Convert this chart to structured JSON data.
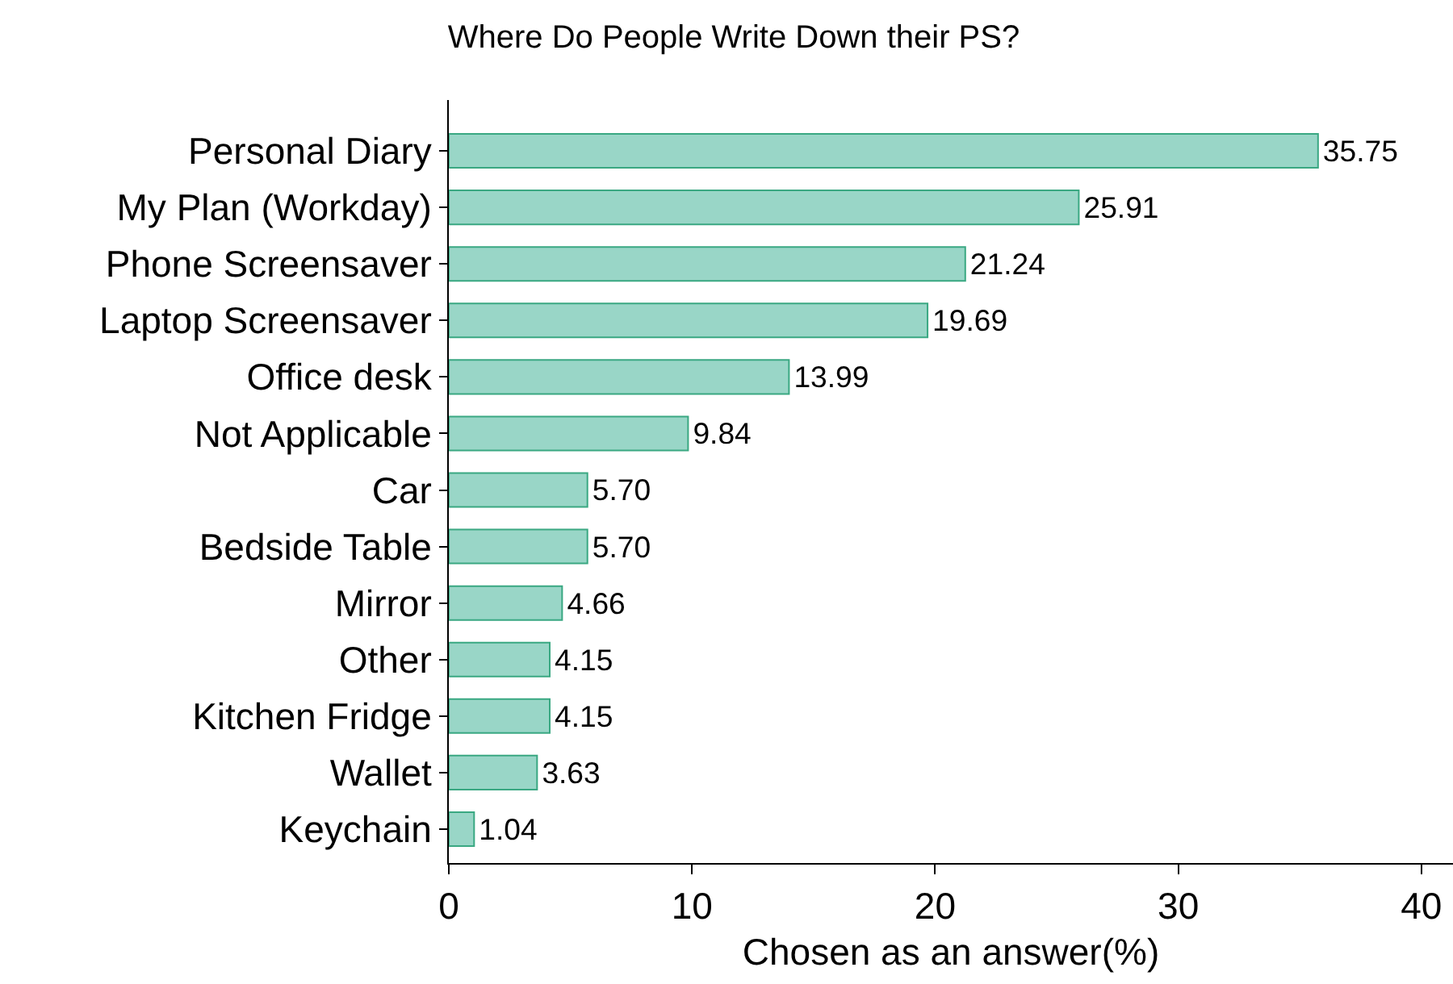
{
  "chart_data": {
    "type": "bar",
    "orientation": "horizontal",
    "title": "Where Do People Write Down their PS?",
    "xlabel": "Chosen as an answer(%)",
    "categories": [
      "Personal Diary",
      "My Plan (Workday)",
      "Phone Screensaver",
      "Laptop Screensaver",
      "Office desk",
      "Not Applicable",
      "Car",
      "Bedside Table",
      "Mirror",
      "Other",
      "Kitchen Fridge",
      "Wallet",
      "Keychain"
    ],
    "values": [
      35.75,
      25.91,
      21.24,
      19.69,
      13.99,
      9.84,
      5.7,
      5.7,
      4.66,
      4.15,
      4.15,
      3.63,
      1.04
    ],
    "value_labels": [
      "35.75",
      "25.91",
      "21.24",
      "19.69",
      "13.99",
      "9.84",
      "5.70",
      "5.70",
      "4.66",
      "4.15",
      "4.15",
      "3.63",
      "1.04"
    ],
    "color": "#99d6c7",
    "xlim": [
      0,
      41.3
    ],
    "xticks": [
      0,
      10,
      20,
      30,
      40
    ],
    "legend": false
  }
}
